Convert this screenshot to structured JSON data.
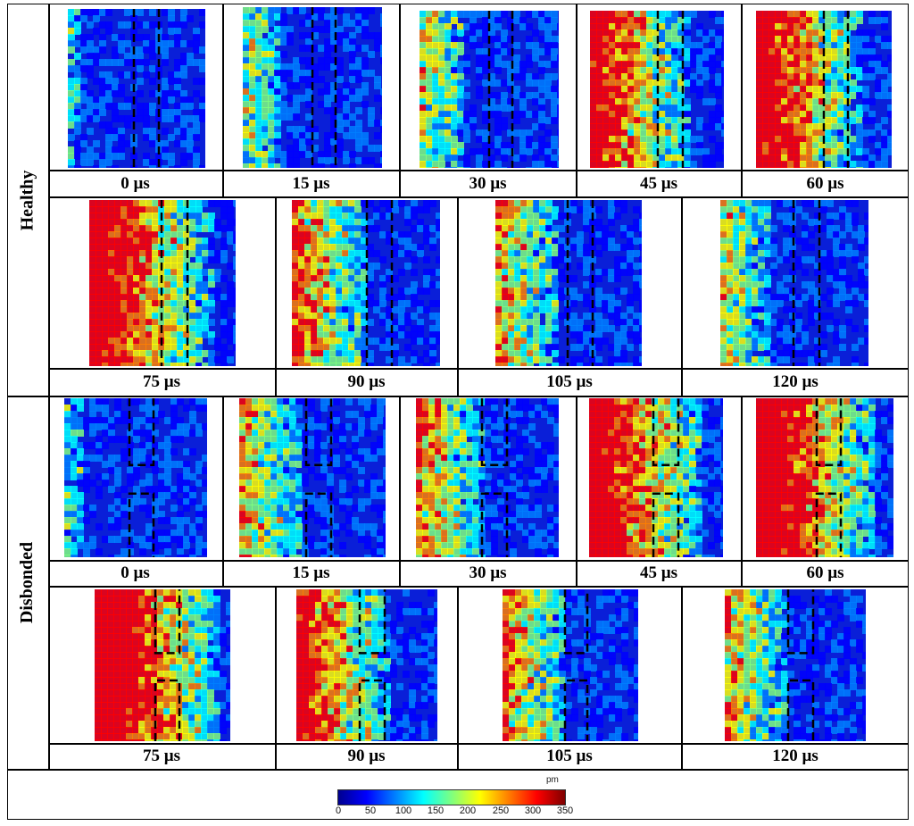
{
  "groups": [
    {
      "label": "Healthy",
      "type": "healthy",
      "row1_times": [
        "0 µs",
        "15 µs",
        "30 µs",
        "45 µs",
        "60 µs"
      ],
      "row2_times": [
        "75 µs",
        "90 µs",
        "105 µs",
        "120 µs"
      ]
    },
    {
      "label": "Disbonded",
      "type": "disbonded",
      "row1_times": [
        "0 µs",
        "15 µs",
        "30 µs",
        "45 µs",
        "60 µs"
      ],
      "row2_times": [
        "75 µs",
        "90 µs",
        "105 µs",
        "120 µs"
      ]
    }
  ],
  "scan_hotness": {
    "healthy": [
      0.05,
      0.25,
      0.3,
      0.7,
      0.75,
      0.8,
      0.5,
      0.4,
      0.3
    ],
    "disbonded": [
      0.1,
      0.4,
      0.45,
      0.8,
      0.85,
      0.9,
      0.65,
      0.45,
      0.4
    ]
  },
  "colorbar": {
    "unit": "pm",
    "ticks": [
      "0",
      "50",
      "100",
      "150",
      "200",
      "250",
      "300",
      "350"
    ],
    "colors": [
      "#00008f",
      "#0000ff",
      "#007fff",
      "#00ffff",
      "#7fff7f",
      "#ffff00",
      "#ff7f00",
      "#ff0000",
      "#7f0000"
    ]
  }
}
